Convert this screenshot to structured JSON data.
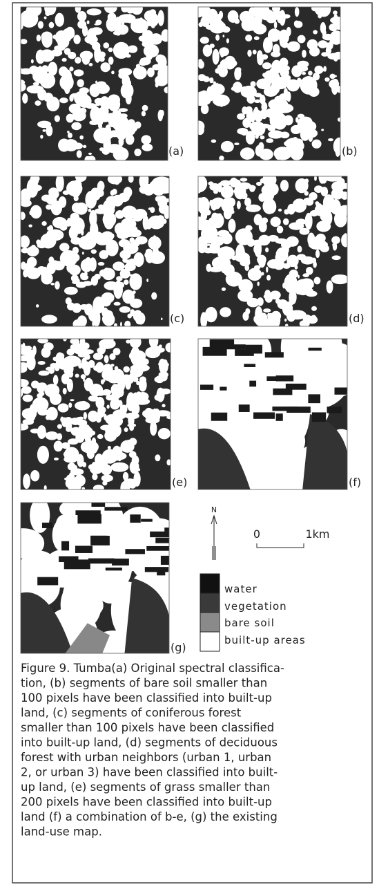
{
  "figure": {
    "panels": [
      {
        "label": "(a)"
      },
      {
        "label": "(b)"
      },
      {
        "label": "(c)"
      },
      {
        "label": "(d)"
      },
      {
        "label": "(e)"
      },
      {
        "label": "(f)"
      },
      {
        "label": "(g)"
      }
    ],
    "north": "N",
    "scale": {
      "start": "0",
      "end": "1km"
    },
    "legend": [
      "water",
      "vegetation",
      "bare soil",
      "built-up areas"
    ],
    "caption": [
      "Figure 9. Tumba(a) Original spectral classifica-",
      "tion, (b) segments of bare soil smaller than",
      "100 pixels have been classified into built-up",
      "land, (c) segments of coniferous forest",
      "smaller than 100 pixels have been classified",
      "into built-up land, (d) segments of deciduous",
      "forest with urban neighbors (urban 1, urban",
      "2, or urban 3) have been classified into built-",
      "up land, (e) segments of grass smaller than",
      "200 pixels have been classified into built-up",
      "land (f) a combination of b-e, (g) the existing",
      "land-use map."
    ]
  }
}
